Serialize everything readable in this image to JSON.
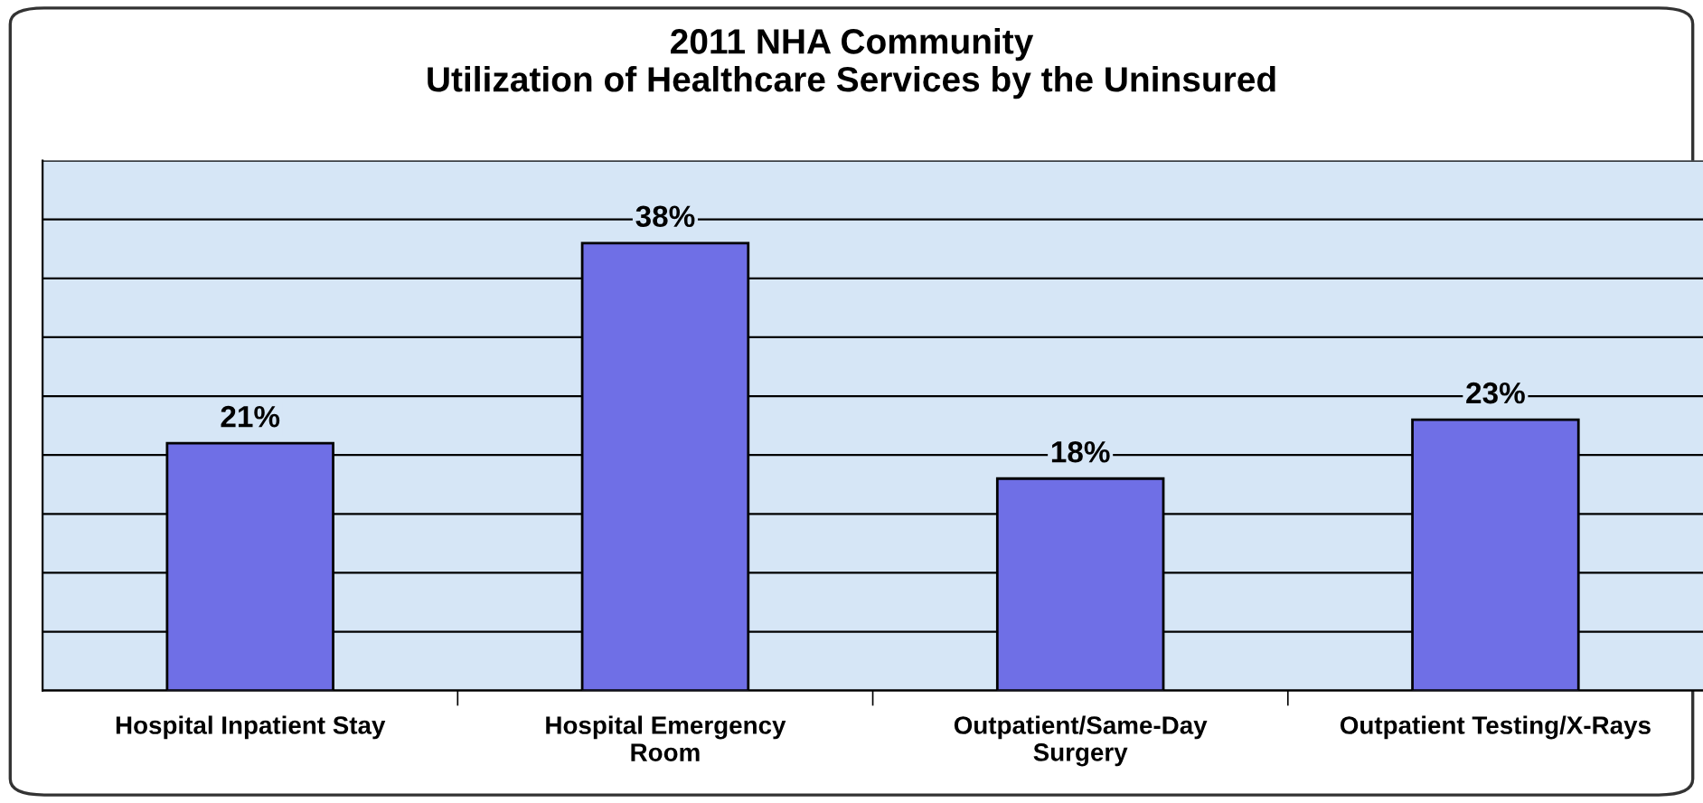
{
  "chart_data": {
    "type": "bar",
    "title": "2011 NHA Community\nUtilization of Healthcare Services by the Uninsured",
    "categories": [
      "Hospital Inpatient Stay",
      "Hospital Emergency\nRoom",
      "Outpatient/Same-Day\nSurgery",
      "Outpatient Testing/X-Rays"
    ],
    "values": [
      21,
      38,
      18,
      23
    ],
    "value_labels": [
      "21%",
      "38%",
      "18%",
      "23%"
    ],
    "color": "#6f6fe6",
    "ylim": [
      0,
      45
    ],
    "yticks": [
      {
        "value": 0,
        "label": null
      },
      {
        "value": 5,
        "label": null
      },
      {
        "value": 10,
        "label": null
      },
      {
        "value": 15,
        "label": null
      },
      {
        "value": 20,
        "label": null
      },
      {
        "value": 25,
        "label": null
      },
      {
        "value": 30,
        "label": null
      },
      {
        "value": 35,
        "label": null
      },
      {
        "value": 40,
        "label": null
      },
      {
        "value": 45,
        "label": null
      }
    ],
    "grid": "y",
    "tick_labels": "x"
  }
}
